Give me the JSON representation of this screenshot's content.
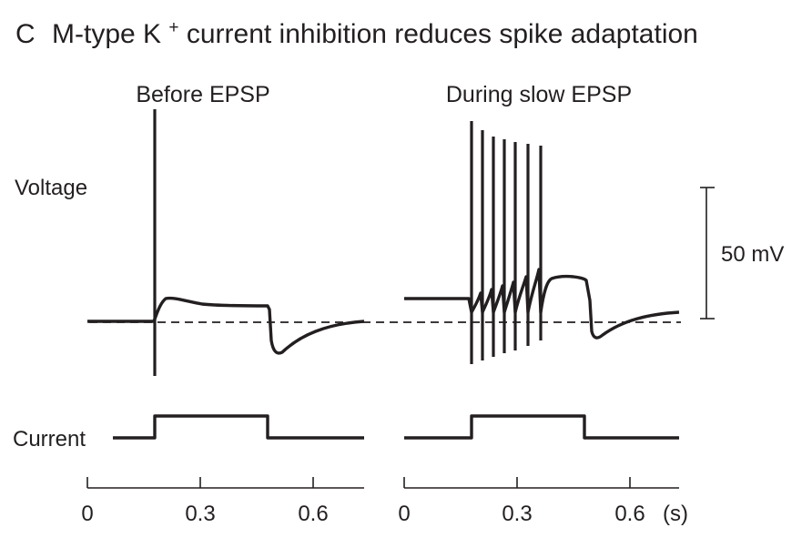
{
  "figure": {
    "panel_letter": "C",
    "title_main": "M-type K",
    "title_sup": "+",
    "title_rest": " current inhibition reduces spike adaptation"
  },
  "panels": [
    {
      "title": "Before EPSP"
    },
    {
      "title": "During slow EPSP"
    }
  ],
  "row_labels": {
    "voltage": "Voltage",
    "current": "Current"
  },
  "scale_bar": {
    "label": "50 mV",
    "value_mv": 50
  },
  "time_axis": {
    "unit": "(s)",
    "tick_labels": [
      "0",
      "0.3",
      "0.6"
    ]
  },
  "chart_data": {
    "type": "line",
    "x_unit": "s",
    "y_unit": "mV",
    "x_range": [
      0,
      0.7
    ],
    "current_step": {
      "on_s": 0.17,
      "off_s": 0.47
    },
    "panels": [
      {
        "name": "Before EPSP",
        "spike_times_s": [
          0.17
        ],
        "current_on_s": 0.17,
        "current_off_s": 0.47
      },
      {
        "name": "During slow EPSP",
        "spike_times_s": [
          0.17,
          0.19,
          0.21,
          0.23,
          0.25,
          0.28,
          0.31,
          0.34,
          0.37
        ],
        "current_on_s": 0.17,
        "current_off_s": 0.47
      }
    ]
  }
}
